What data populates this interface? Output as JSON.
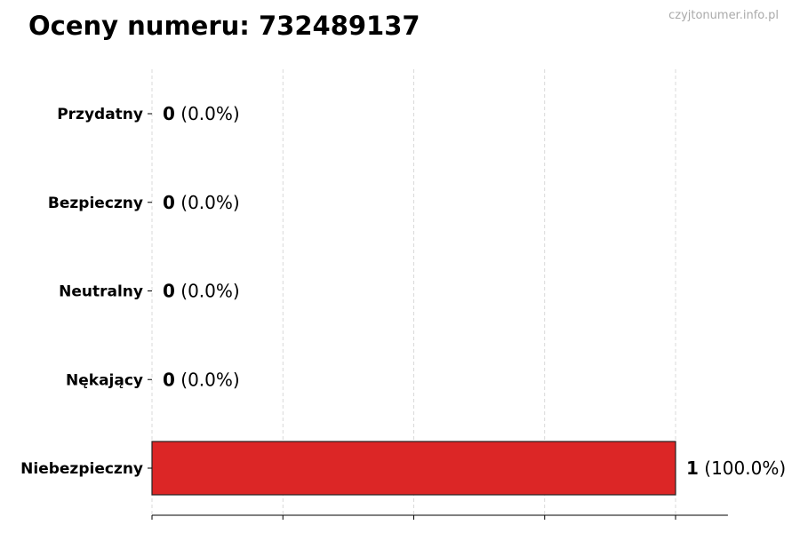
{
  "watermark": "czyjtonumer.info.pl",
  "chart_data": {
    "type": "bar",
    "orientation": "horizontal",
    "title": "Oceny numeru: 732489137",
    "categories": [
      "Przydatny",
      "Bezpieczny",
      "Neutralny",
      "Nękający",
      "Niebezpieczny"
    ],
    "values": [
      0,
      0,
      0,
      0,
      1
    ],
    "percent_labels": [
      "(0.0%)",
      "(0.0%)",
      "(0.0%)",
      "(0.0%)",
      "(100.0%)"
    ],
    "bar_colors": [
      "#2ca02c",
      "#2ca02c",
      "#888888",
      "#ff7f0e",
      "#dc2626"
    ],
    "xlim": [
      0,
      1.1
    ],
    "xticks": [
      0,
      0.25,
      0.5,
      0.75,
      1.0
    ],
    "xtick_labels_shown": false,
    "grid": "x-dashed",
    "xlabel": "",
    "ylabel": ""
  }
}
